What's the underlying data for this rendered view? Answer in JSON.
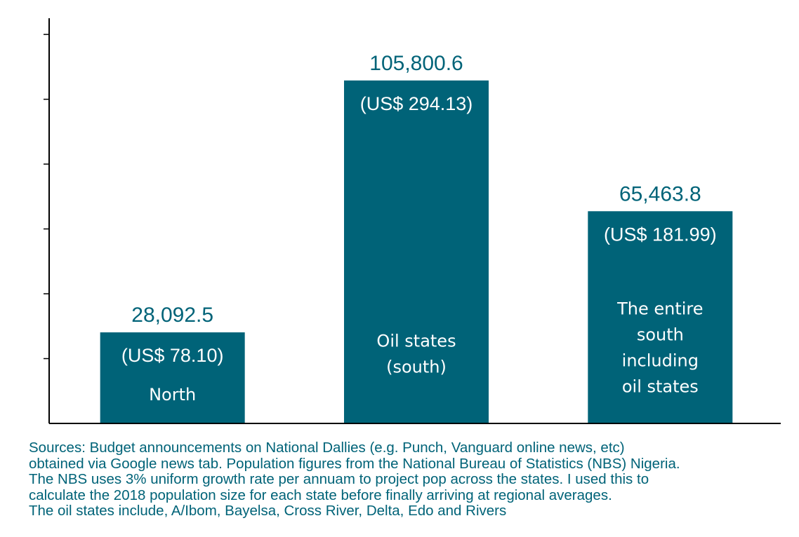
{
  "chart_data": {
    "type": "bar",
    "categories": [
      [
        "North"
      ],
      [
        "Oil states",
        "(south)"
      ],
      [
        "The entire",
        "south",
        "including",
        "oil states"
      ]
    ],
    "values": [
      28092.5,
      105800.6,
      65463.8
    ],
    "value_labels": [
      "28,092.5",
      "105,800.6",
      "65,463.8"
    ],
    "usd_labels": [
      "(US$ 78.10)",
      "(US$ 294.13)",
      "(US$ 181.99)"
    ],
    "ylim": [
      0,
      125000
    ],
    "y_tick_step": 20000,
    "y_tick_labels_shown": false,
    "grid": false,
    "bar_color": "#006378",
    "label_color": "#006378"
  },
  "sources": {
    "lines": [
      "Sources: Budget announcements on National Dallies (e.g. Punch, Vanguard online news, etc)",
      "obtained via Google news tab. Population figures from the National Bureau of Statistics (NBS) Nigeria.",
      "The NBS uses 3% uniform growth rate per annuam to project pop across the states. I used this to",
      "calculate the 2018 population size for each state before finally arriving at regional averages.",
      "The oil states include, A/Ibom, Bayelsa, Cross River, Delta, Edo and Rivers"
    ],
    "color": "#006378"
  }
}
